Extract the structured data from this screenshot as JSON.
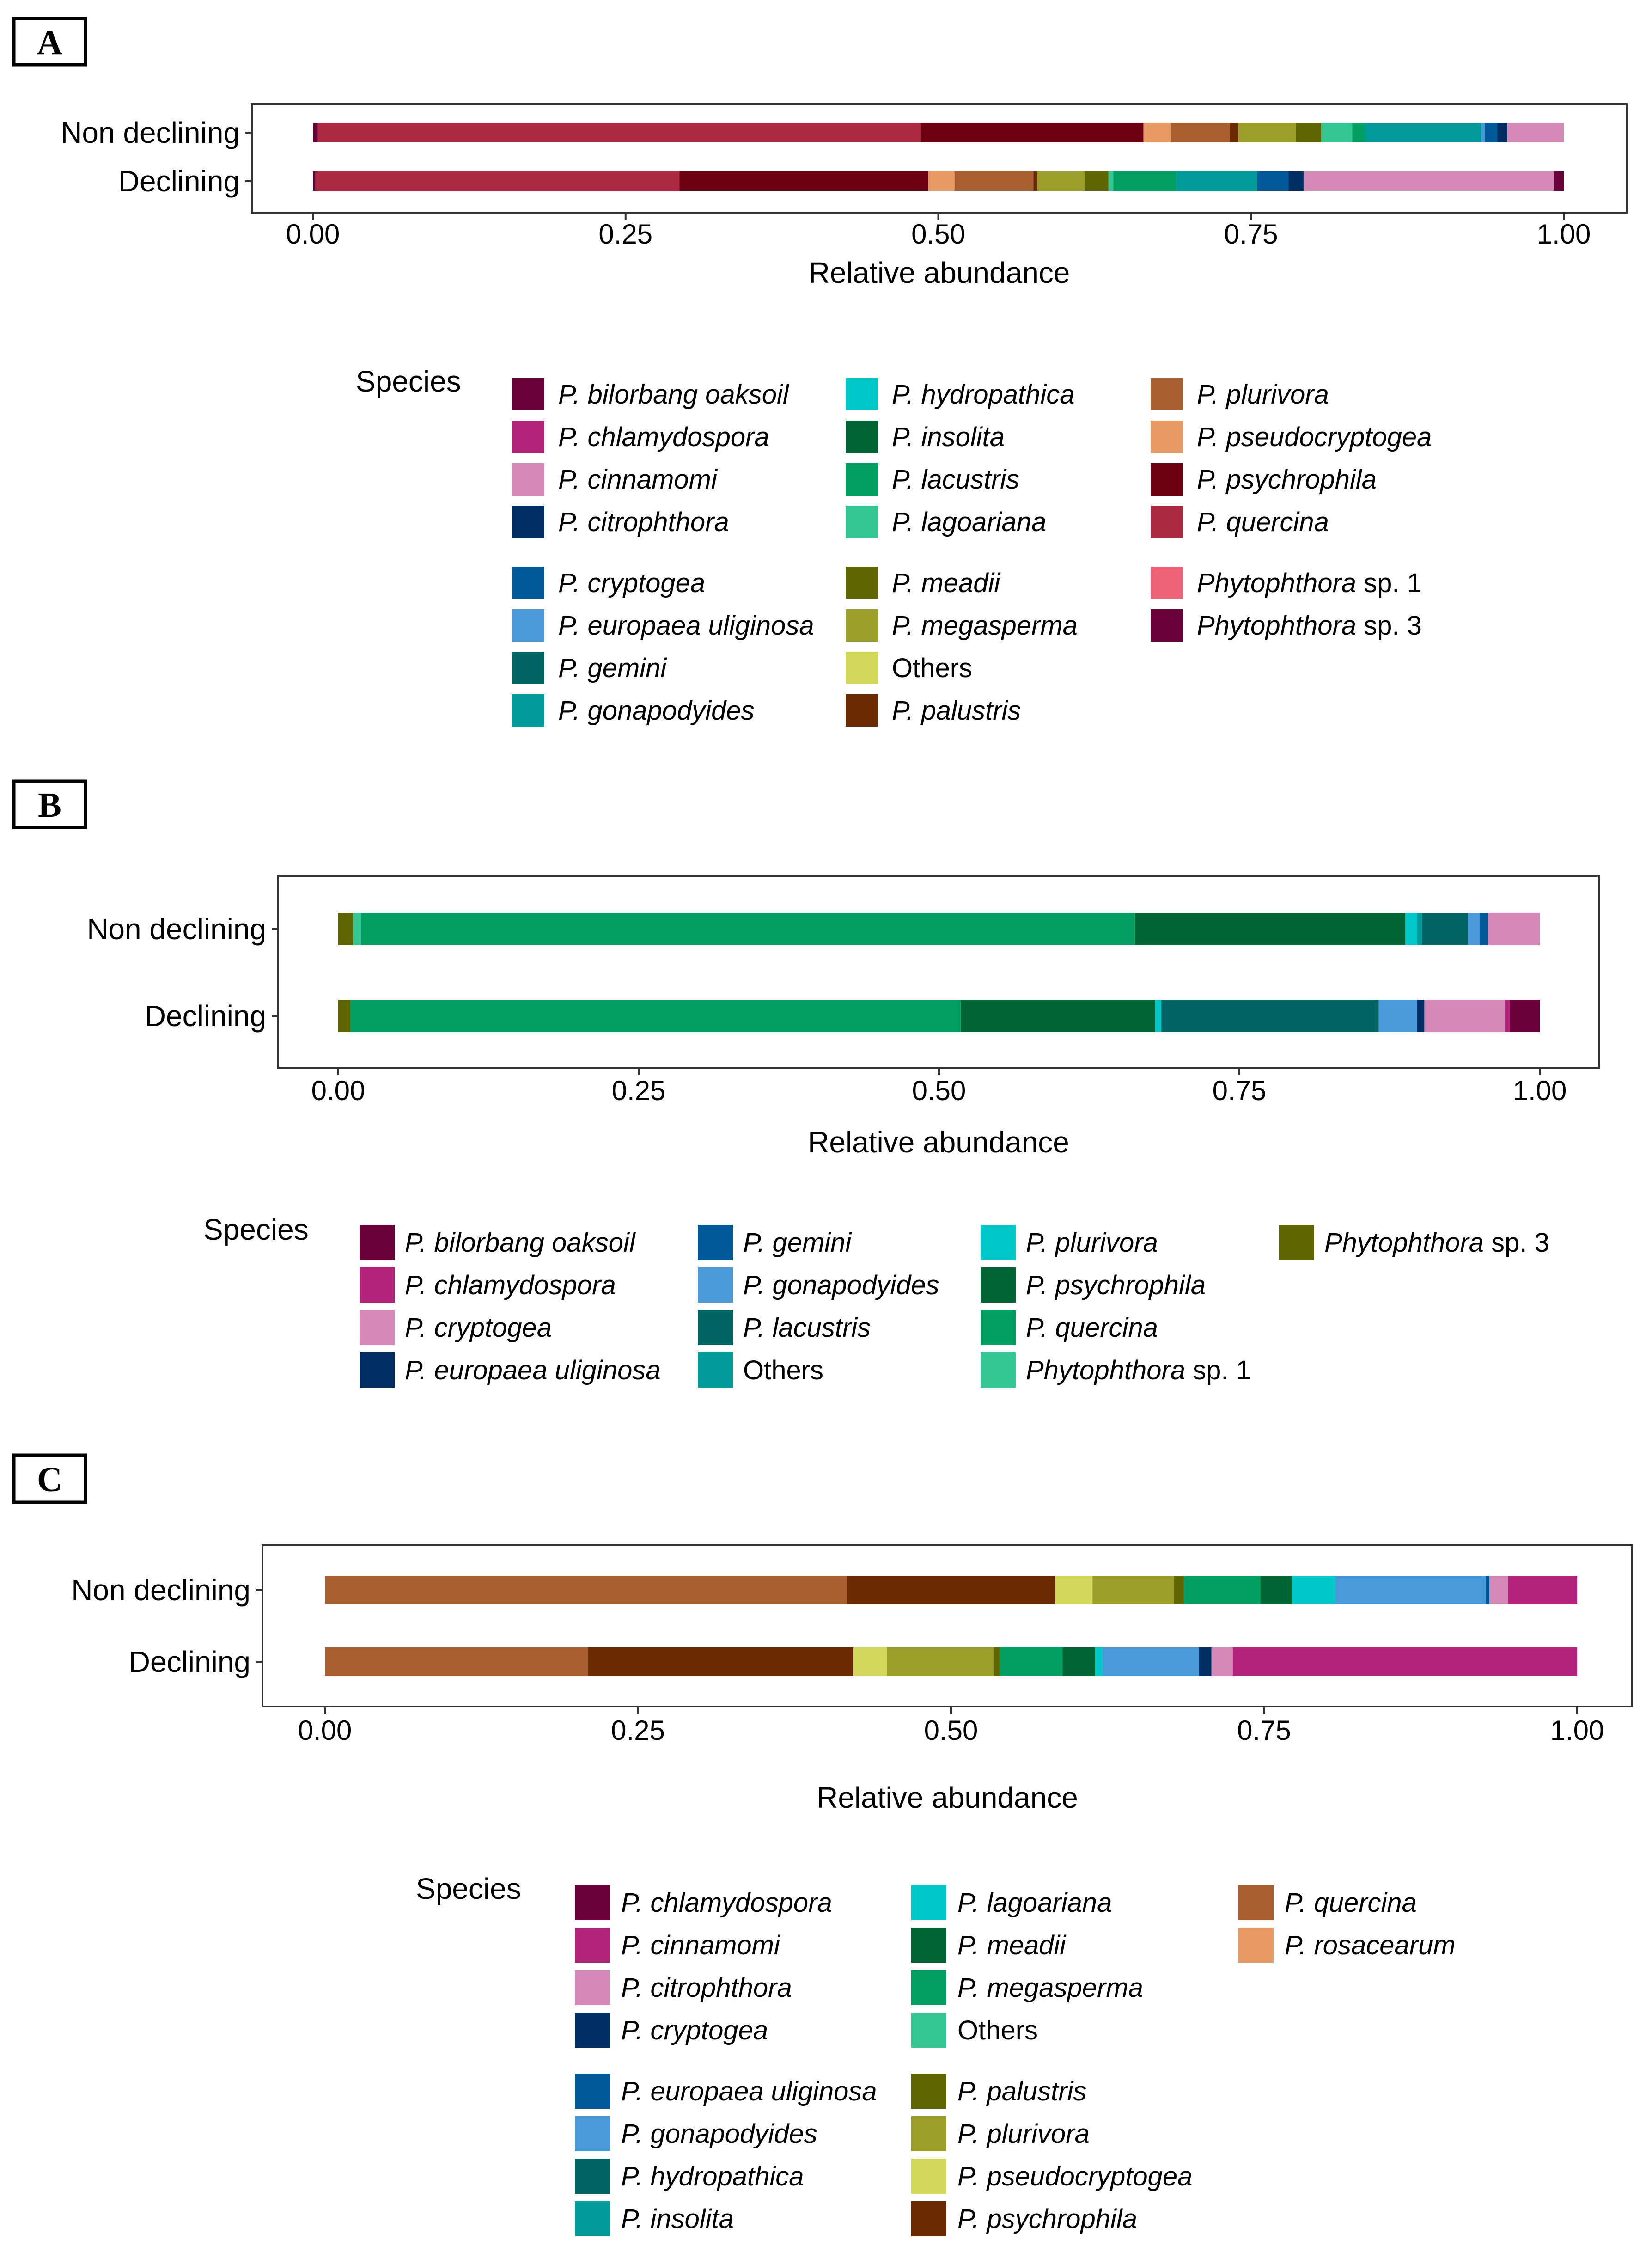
{
  "xlabel": "Relative abundance",
  "legend_title": "Species",
  "row_labels": [
    "Non declining",
    "Declining"
  ],
  "ticks": [
    "0.00",
    "0.25",
    "0.50",
    "0.75",
    "1.00"
  ],
  "chart_data": [
    {
      "type": "bar",
      "orientation": "horizontal",
      "stacked": true,
      "panel": "A",
      "xlabel": "Relative abundance",
      "xlim": [
        0,
        1
      ],
      "categories": [
        "Non declining",
        "Declining"
      ],
      "legend_title": "Species",
      "legend": [
        {
          "label": "P. bilorbang oaksoil",
          "color": "#6a0038"
        },
        {
          "label": "P. chlamydospora",
          "color": "#b2237a"
        },
        {
          "label": "P. cinnamomi",
          "color": "#d589b6"
        },
        {
          "label": "P. citrophthora",
          "color": "#002e62"
        },
        {
          "label": "P. cryptogea",
          "color": "#02599a"
        },
        {
          "label": "P. europaea uliginosa",
          "color": "#4a9ada"
        },
        {
          "label": "P. gemini",
          "color": "#006462"
        },
        {
          "label": "P. gonapodyides",
          "color": "#009b9a"
        },
        {
          "label": "P. hydropathica",
          "color": "#00c8c8"
        },
        {
          "label": "P. insolita",
          "color": "#006433"
        },
        {
          "label": "P. lacustris",
          "color": "#009e61"
        },
        {
          "label": "P. lagoariana",
          "color": "#33c592"
        },
        {
          "label": "P. meadii",
          "color": "#5f6500"
        },
        {
          "label": "P. megasperma",
          "color": "#9c9e2a"
        },
        {
          "label": "Others",
          "color": "#d2d85a"
        },
        {
          "label": "P. palustris",
          "color": "#6b2a00"
        },
        {
          "label": "P. plurivora",
          "color": "#a95f30"
        },
        {
          "label": "P. pseudocryptogea",
          "color": "#e89a65"
        },
        {
          "label": "P. psychrophila",
          "color": "#6c0010"
        },
        {
          "label": "P. quercina",
          "color": "#ab2a42"
        },
        {
          "label": "Phytophthora sp. 1",
          "color": "#ef6379"
        },
        {
          "label": "Phytophthora sp. 3",
          "color": "#6a0038"
        }
      ],
      "series": [
        {
          "name": "Non declining",
          "segments": [
            {
              "label": "P. bilorbang oaksoil",
              "value": 0.004
            },
            {
              "label": "P. quercina",
              "value": 0.482
            },
            {
              "label": "P. psychrophila",
              "value": 0.178
            },
            {
              "label": "P. pseudocryptogea",
              "value": 0.022
            },
            {
              "label": "P. plurivora",
              "value": 0.047
            },
            {
              "label": "P. palustris",
              "value": 0.007
            },
            {
              "label": "P. megasperma",
              "value": 0.046
            },
            {
              "label": "P. meadii",
              "value": 0.02
            },
            {
              "label": "P. lagoariana",
              "value": 0.025
            },
            {
              "label": "P. lacustris",
              "value": 0.01
            },
            {
              "label": "P. gonapodyides",
              "value": 0.093
            },
            {
              "label": "P. europaea uliginosa",
              "value": 0.003
            },
            {
              "label": "P. cryptogea",
              "value": 0.01
            },
            {
              "label": "P. citrophthora",
              "value": 0.008
            },
            {
              "label": "P. cinnamomi",
              "value": 0.045
            }
          ]
        },
        {
          "name": "Declining",
          "segments": [
            {
              "label": "P. bilorbang oaksoil",
              "value": 0.002
            },
            {
              "label": "P. quercina",
              "value": 0.291
            },
            {
              "label": "P. psychrophila",
              "value": 0.199
            },
            {
              "label": "P. pseudocryptogea",
              "value": 0.021
            },
            {
              "label": "P. plurivora",
              "value": 0.063
            },
            {
              "label": "P. palustris",
              "value": 0.003
            },
            {
              "label": "P. megasperma",
              "value": 0.038
            },
            {
              "label": "P. meadii",
              "value": 0.019
            },
            {
              "label": "P. lagoariana",
              "value": 0.004
            },
            {
              "label": "P. lacustris",
              "value": 0.05
            },
            {
              "label": "P. gonapodyides",
              "value": 0.065
            },
            {
              "label": "P. cryptogea",
              "value": 0.025
            },
            {
              "label": "P. citrophthora",
              "value": 0.012
            },
            {
              "label": "P. cinnamomi",
              "value": 0.2
            },
            {
              "label": "P. bilorbang oaksoil",
              "value": 0.008
            }
          ]
        }
      ]
    },
    {
      "type": "bar",
      "orientation": "horizontal",
      "stacked": true,
      "panel": "B",
      "xlabel": "Relative abundance",
      "xlim": [
        0,
        1
      ],
      "categories": [
        "Non declining",
        "Declining"
      ],
      "legend_title": "Species",
      "legend": [
        {
          "label": "P. bilorbang oaksoil",
          "color": "#6a0038"
        },
        {
          "label": "P. chlamydospora",
          "color": "#b2237a"
        },
        {
          "label": "P. cryptogea",
          "color": "#d589b6"
        },
        {
          "label": "P. europaea uliginosa",
          "color": "#002e62"
        },
        {
          "label": "P. gemini",
          "color": "#02599a"
        },
        {
          "label": "P. gonapodyides",
          "color": "#4a9ada"
        },
        {
          "label": "P. lacustris",
          "color": "#006462"
        },
        {
          "label": "Others",
          "color": "#009b9a"
        },
        {
          "label": "P. plurivora",
          "color": "#00c8c8"
        },
        {
          "label": "P. psychrophila",
          "color": "#006433"
        },
        {
          "label": "P. quercina",
          "color": "#009e61"
        },
        {
          "label": "Phytophthora sp. 1",
          "color": "#33c592"
        },
        {
          "label": "Phytophthora sp. 3",
          "color": "#5f6500"
        }
      ],
      "series": [
        {
          "name": "Non declining",
          "segments": [
            {
              "label": "Phytophthora sp. 3",
              "value": 0.012
            },
            {
              "label": "Phytophthora sp. 1",
              "value": 0.007
            },
            {
              "label": "P. quercina",
              "value": 0.644
            },
            {
              "label": "P. psychrophila",
              "value": 0.225
            },
            {
              "label": "P. plurivora",
              "value": 0.01
            },
            {
              "label": "Others",
              "value": 0.004
            },
            {
              "label": "P. lacustris",
              "value": 0.038
            },
            {
              "label": "P. gonapodyides",
              "value": 0.01
            },
            {
              "label": "P. gemini",
              "value": 0.007
            },
            {
              "label": "P. cryptogea",
              "value": 0.043
            }
          ]
        },
        {
          "name": "Declining",
          "segments": [
            {
              "label": "Phytophthora sp. 3",
              "value": 0.01
            },
            {
              "label": "P. quercina",
              "value": 0.508
            },
            {
              "label": "P. psychrophila",
              "value": 0.162
            },
            {
              "label": "P. plurivora",
              "value": 0.005
            },
            {
              "label": "P. lacustris",
              "value": 0.181
            },
            {
              "label": "P. gonapodyides",
              "value": 0.032
            },
            {
              "label": "P. europaea uliginosa",
              "value": 0.006
            },
            {
              "label": "P. cryptogea",
              "value": 0.067
            },
            {
              "label": "P. chlamydospora",
              "value": 0.004
            },
            {
              "label": "P. bilorbang oaksoil",
              "value": 0.025
            }
          ]
        }
      ]
    },
    {
      "type": "bar",
      "orientation": "horizontal",
      "stacked": true,
      "panel": "C",
      "xlabel": "Relative abundance",
      "xlim": [
        0,
        1
      ],
      "categories": [
        "Non declining",
        "Declining"
      ],
      "legend_title": "Species",
      "legend": [
        {
          "label": "P. chlamydospora",
          "color": "#6a0038"
        },
        {
          "label": "P. cinnamomi",
          "color": "#b2237a"
        },
        {
          "label": "P. citrophthora",
          "color": "#d589b6"
        },
        {
          "label": "P. cryptogea",
          "color": "#002e62"
        },
        {
          "label": "P. europaea uliginosa",
          "color": "#02599a"
        },
        {
          "label": "P. gonapodyides",
          "color": "#4a9ada"
        },
        {
          "label": "P. hydropathica",
          "color": "#006462"
        },
        {
          "label": "P. insolita",
          "color": "#009b9a"
        },
        {
          "label": "P. lagoariana",
          "color": "#00c8c8"
        },
        {
          "label": "P. meadii",
          "color": "#006433"
        },
        {
          "label": "P. megasperma",
          "color": "#009e61"
        },
        {
          "label": "Others",
          "color": "#33c592"
        },
        {
          "label": "P. palustris",
          "color": "#5f6500"
        },
        {
          "label": "P. plurivora",
          "color": "#9c9e2a"
        },
        {
          "label": "P. pseudocryptogea",
          "color": "#d2d85a"
        },
        {
          "label": "P. psychrophila",
          "color": "#6b2a00"
        },
        {
          "label": "P. quercina",
          "color": "#a95f30"
        },
        {
          "label": "P. rosacearum",
          "color": "#e89a65"
        }
      ],
      "series": [
        {
          "name": "Non declining",
          "segments": [
            {
              "label": "P. quercina",
              "value": 0.417
            },
            {
              "label": "P. psychrophila",
              "value": 0.166
            },
            {
              "label": "P. pseudocryptogea",
              "value": 0.03
            },
            {
              "label": "P. plurivora",
              "value": 0.065
            },
            {
              "label": "P. palustris",
              "value": 0.008
            },
            {
              "label": "P. megasperma",
              "value": 0.061
            },
            {
              "label": "P. meadii",
              "value": 0.025
            },
            {
              "label": "P. lagoariana",
              "value": 0.035
            },
            {
              "label": "P. gonapodyides",
              "value": 0.12
            },
            {
              "label": "P. europaea uliginosa",
              "value": 0.003
            },
            {
              "label": "P. citrophthora",
              "value": 0.015
            },
            {
              "label": "P. cinnamomi",
              "value": 0.055
            }
          ]
        },
        {
          "name": "Declining",
          "segments": [
            {
              "label": "P. quercina",
              "value": 0.21
            },
            {
              "label": "P. psychrophila",
              "value": 0.212
            },
            {
              "label": "P. pseudocryptogea",
              "value": 0.027
            },
            {
              "label": "P. plurivora",
              "value": 0.085
            },
            {
              "label": "P. palustris",
              "value": 0.005
            },
            {
              "label": "P. megasperma",
              "value": 0.05
            },
            {
              "label": "P. meadii",
              "value": 0.026
            },
            {
              "label": "P. lagoariana",
              "value": 0.006
            },
            {
              "label": "P. gonapodyides",
              "value": 0.077
            },
            {
              "label": "P. cryptogea",
              "value": 0.01
            },
            {
              "label": "P. citrophthora",
              "value": 0.017
            },
            {
              "label": "P. cinnamomi",
              "value": 0.275
            }
          ]
        }
      ]
    }
  ]
}
